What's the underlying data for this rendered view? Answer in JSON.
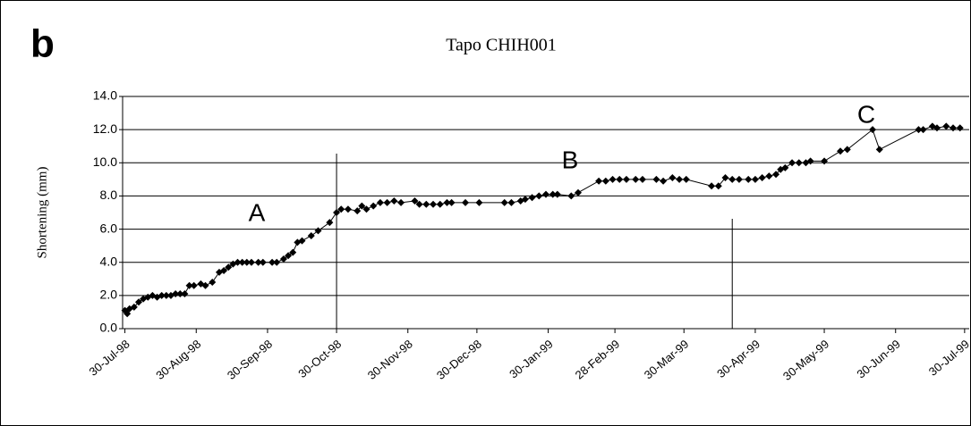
{
  "chart_data": {
    "type": "line",
    "panel_label": "b",
    "title": "Tapo CHIH001",
    "y_label": "Shortening (mm)",
    "annotations": [
      "A",
      "B",
      "C"
    ],
    "vlines": [
      "1998-10-30",
      "1999-04-20"
    ],
    "xlim": [
      "1998-07-29",
      "1999-08-01"
    ],
    "xticks": [
      {
        "value": "1998-07-30",
        "label": "30-Jul-98"
      },
      {
        "value": "1998-08-30",
        "label": "30-Aug-98"
      },
      {
        "value": "1998-09-30",
        "label": "30-Sep-98"
      },
      {
        "value": "1998-10-30",
        "label": "30-Oct-98"
      },
      {
        "value": "1998-11-30",
        "label": "30-Nov-98"
      },
      {
        "value": "1998-12-30",
        "label": "30-Dec-98"
      },
      {
        "value": "1999-01-30",
        "label": "30-Jan-99"
      },
      {
        "value": "1999-02-28",
        "label": "28-Feb-99"
      },
      {
        "value": "1999-03-30",
        "label": "30-Mar-99"
      },
      {
        "value": "1999-04-30",
        "label": "30-Apr-99"
      },
      {
        "value": "1999-05-30",
        "label": "30-May-99"
      },
      {
        "value": "1999-06-30",
        "label": "30-Jun-99"
      },
      {
        "value": "1999-07-30",
        "label": "30-Jul-99"
      }
    ],
    "ylim": [
      0,
      14
    ],
    "yticks": [
      {
        "value": 0,
        "label": "0.0"
      },
      {
        "value": 2,
        "label": "2.0"
      },
      {
        "value": 4,
        "label": "4.0"
      },
      {
        "value": 6,
        "label": "6.0"
      },
      {
        "value": 8,
        "label": "8.0"
      },
      {
        "value": 10,
        "label": "10.0"
      },
      {
        "value": 12,
        "label": "12.0"
      },
      {
        "value": 14,
        "label": "14.0"
      }
    ],
    "grid": true,
    "color": "#000000",
    "x": [
      "1998-07-30",
      "1998-07-31",
      "1998-08-01",
      "1998-08-03",
      "1998-08-05",
      "1998-08-07",
      "1998-08-09",
      "1998-08-11",
      "1998-08-13",
      "1998-08-15",
      "1998-08-17",
      "1998-08-19",
      "1998-08-21",
      "1998-08-23",
      "1998-08-25",
      "1998-08-27",
      "1998-08-29",
      "1998-09-01",
      "1998-09-03",
      "1998-09-06",
      "1998-09-09",
      "1998-09-11",
      "1998-09-13",
      "1998-09-15",
      "1998-09-17",
      "1998-09-19",
      "1998-09-21",
      "1998-09-23",
      "1998-09-26",
      "1998-09-28",
      "1998-10-02",
      "1998-10-04",
      "1998-10-07",
      "1998-10-09",
      "1998-10-11",
      "1998-10-13",
      "1998-10-15",
      "1998-10-19",
      "1998-10-22",
      "1998-10-27",
      "1998-10-30",
      "1998-11-01",
      "1998-11-04",
      "1998-11-08",
      "1998-11-10",
      "1998-11-12",
      "1998-11-15",
      "1998-11-18",
      "1998-11-21",
      "1998-11-24",
      "1998-11-27",
      "1998-12-03",
      "1998-12-05",
      "1998-12-08",
      "1998-12-11",
      "1998-12-14",
      "1998-12-17",
      "1998-12-19",
      "1998-12-25",
      "1998-12-31",
      "1999-01-11",
      "1999-01-14",
      "1999-01-18",
      "1999-01-20",
      "1999-01-23",
      "1999-01-26",
      "1999-01-29",
      "1999-02-01",
      "1999-02-03",
      "1999-02-09",
      "1999-02-12",
      "1999-02-21",
      "1999-02-24",
      "1999-02-27",
      "1999-03-02",
      "1999-03-05",
      "1999-03-09",
      "1999-03-12",
      "1999-03-18",
      "1999-03-21",
      "1999-03-25",
      "1999-03-28",
      "1999-03-31",
      "1999-04-11",
      "1999-04-14",
      "1999-04-17",
      "1999-04-20",
      "1999-04-23",
      "1999-04-27",
      "1999-04-30",
      "1999-05-03",
      "1999-05-06",
      "1999-05-09",
      "1999-05-11",
      "1999-05-13",
      "1999-05-16",
      "1999-05-19",
      "1999-05-22",
      "1999-05-24",
      "1999-05-30",
      "1999-06-06",
      "1999-06-09",
      "1999-06-20",
      "1999-06-23",
      "1999-07-10",
      "1999-07-12",
      "1999-07-16",
      "1999-07-18",
      "1999-07-22",
      "1999-07-25",
      "1999-07-28"
    ],
    "values": [
      1.1,
      0.9,
      1.2,
      1.3,
      1.6,
      1.8,
      1.9,
      2.0,
      1.9,
      2.0,
      2.0,
      2.0,
      2.1,
      2.1,
      2.1,
      2.6,
      2.6,
      2.7,
      2.6,
      2.8,
      3.4,
      3.5,
      3.7,
      3.9,
      4.0,
      4.0,
      4.0,
      4.0,
      4.0,
      4.0,
      4.0,
      4.0,
      4.2,
      4.4,
      4.6,
      5.2,
      5.3,
      5.6,
      5.9,
      6.4,
      7.0,
      7.2,
      7.2,
      7.1,
      7.4,
      7.2,
      7.4,
      7.6,
      7.6,
      7.7,
      7.6,
      7.7,
      7.5,
      7.5,
      7.5,
      7.5,
      7.6,
      7.6,
      7.6,
      7.6,
      7.6,
      7.6,
      7.7,
      7.8,
      7.9,
      8.0,
      8.1,
      8.1,
      8.1,
      8.0,
      8.2,
      8.9,
      8.9,
      9.0,
      9.0,
      9.0,
      9.0,
      9.0,
      9.0,
      8.9,
      9.1,
      9.0,
      9.0,
      8.6,
      8.6,
      9.1,
      9.0,
      9.0,
      9.0,
      9.0,
      9.1,
      9.2,
      9.3,
      9.6,
      9.7,
      10.0,
      10.0,
      10.0,
      10.1,
      10.1,
      10.7,
      10.8,
      12.0,
      10.8,
      12.0,
      12.0,
      12.2,
      12.1,
      12.2,
      12.1,
      12.1
    ]
  }
}
